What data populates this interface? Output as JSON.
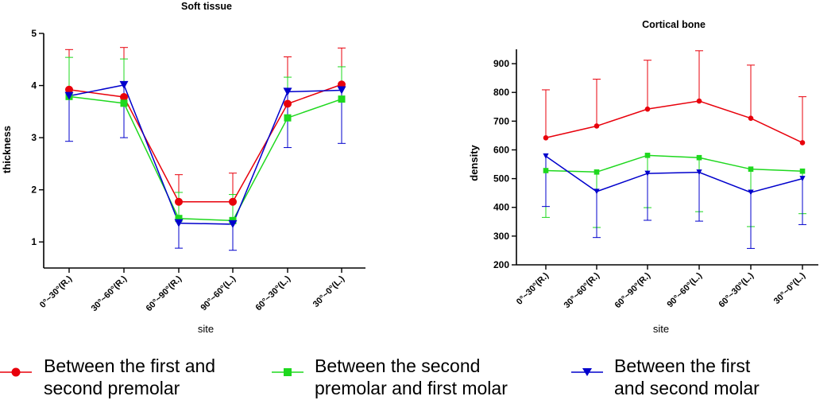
{
  "chart_data": [
    {
      "type": "line",
      "title": "Soft tissue",
      "xlabel": "site",
      "ylabel": "thickness",
      "categories": [
        "0°~30°(R.)",
        "30°~60°(R.)",
        "60°~90°(R.)",
        "90°~60°(L.)",
        "60°~30°(L.)",
        "30°~0°(L.)"
      ],
      "ylim": [
        0.5,
        5
      ],
      "yticks": [
        1,
        2,
        3,
        4,
        5
      ],
      "grid": false,
      "error_bars": "one-sided (upper for red/green, lower for blue)",
      "series": [
        {
          "name": "Between the first and second premolar",
          "color": "#e8000b",
          "marker": "circle",
          "values": [
            3.92,
            3.78,
            1.77,
            1.77,
            3.65,
            4.02
          ],
          "errors": [
            0.77,
            0.95,
            0.52,
            0.55,
            0.9,
            0.7
          ]
        },
        {
          "name": "Between the second premolar and first molar",
          "color": "#1ed81e",
          "marker": "square",
          "values": [
            3.79,
            3.66,
            1.45,
            1.41,
            3.38,
            3.74
          ],
          "errors": [
            0.75,
            0.85,
            0.5,
            0.5,
            0.78,
            0.62
          ]
        },
        {
          "name": "Between the first and second molar",
          "color": "#0000cc",
          "marker": "triangle-down",
          "values": [
            3.8,
            4.01,
            1.36,
            1.34,
            3.88,
            3.91
          ],
          "errors": [
            0.87,
            1.01,
            0.48,
            0.5,
            1.07,
            1.02
          ]
        }
      ]
    },
    {
      "type": "line",
      "title": "Cortical bone",
      "xlabel": "site",
      "ylabel": "density",
      "categories": [
        "0°~30°(R.)",
        "30°~60°(R.)",
        "60°~90°(R.)",
        "90°~60°(L.)",
        "60°~30°(L.)",
        "30°~0°(L.)"
      ],
      "ylim": [
        200,
        950
      ],
      "yticks": [
        200,
        300,
        400,
        500,
        600,
        700,
        800,
        900
      ],
      "grid": false,
      "error_bars": "one-sided (upper for red, lower for green/blue)",
      "series": [
        {
          "name": "Between the first and second premolar",
          "color": "#e8000b",
          "marker": "circle",
          "values": [
            642,
            683,
            742,
            770,
            710,
            625
          ],
          "errors": [
            167,
            163,
            170,
            175,
            185,
            160
          ]
        },
        {
          "name": "Between the second premolar and first molar",
          "color": "#1ed81e",
          "marker": "square",
          "values": [
            528,
            523,
            581,
            573,
            533,
            526
          ],
          "errors": [
            163,
            193,
            182,
            188,
            200,
            148
          ]
        },
        {
          "name": "Between the first and second molar",
          "color": "#0000cc",
          "marker": "triangle-down",
          "values": [
            578,
            455,
            518,
            522,
            452,
            500
          ],
          "errors": [
            175,
            160,
            163,
            170,
            195,
            160
          ]
        }
      ]
    }
  ],
  "legend": [
    {
      "line1": "Between the first and",
      "line2": "second premolar",
      "color": "#e8000b",
      "icon": "circle-marker-icon"
    },
    {
      "line1": "Between the second",
      "line2": "premolar and first molar",
      "color": "#1ed81e",
      "icon": "square-marker-icon"
    },
    {
      "line1": "Between the first",
      "line2": "and second molar",
      "color": "#0000cc",
      "icon": "triangle-down-marker-icon"
    }
  ]
}
